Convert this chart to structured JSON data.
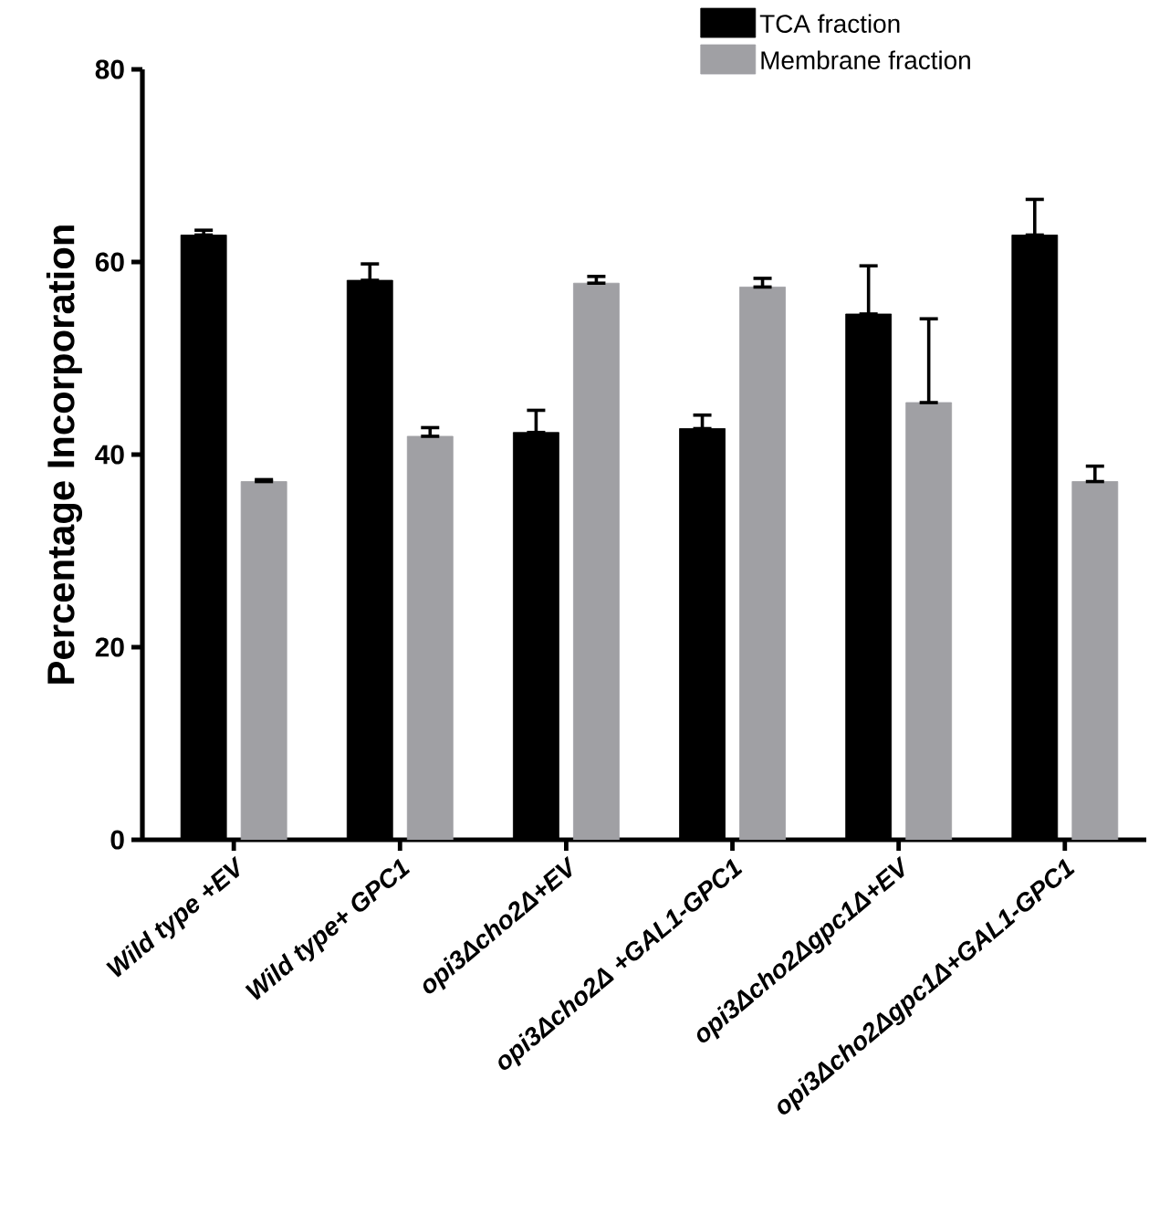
{
  "chart_data": {
    "type": "bar",
    "ylabel": "Percentage Incorporation",
    "categories": [
      "Wild type +EV",
      "Wild type+ GPC1",
      "opi3Δcho2Δ+EV",
      "opi3Δcho2Δ +GAL1-GPC1",
      "opi3Δcho2Δgpc1Δ+EV",
      "opi3Δcho2Δgpc1Δ+GAL1-GPC1"
    ],
    "series": [
      {
        "name": "TCA fraction",
        "color": "#000000",
        "values": [
          62.8,
          58.1,
          42.3,
          42.7,
          54.6,
          62.8
        ],
        "errors": [
          [
            62.8,
            63.3
          ],
          [
            58.1,
            59.8
          ],
          [
            42.3,
            44.6
          ],
          [
            42.7,
            44.1
          ],
          [
            54.6,
            59.6
          ],
          [
            62.8,
            66.5
          ]
        ]
      },
      {
        "name": "Membrane fraction",
        "color": "#a0a0a4",
        "values": [
          37.2,
          41.9,
          57.8,
          57.4,
          45.4,
          37.2
        ],
        "errors": [
          [
            37.2,
            37.4
          ],
          [
            41.9,
            42.8
          ],
          [
            57.8,
            58.5
          ],
          [
            57.4,
            58.3
          ],
          [
            45.4,
            54.1
          ],
          [
            37.2,
            38.8
          ]
        ]
      }
    ],
    "ylim": [
      0,
      80
    ],
    "yticks": [
      0,
      20,
      40,
      60,
      80
    ],
    "grid": false,
    "legend": "top right",
    "marker": "none"
  }
}
